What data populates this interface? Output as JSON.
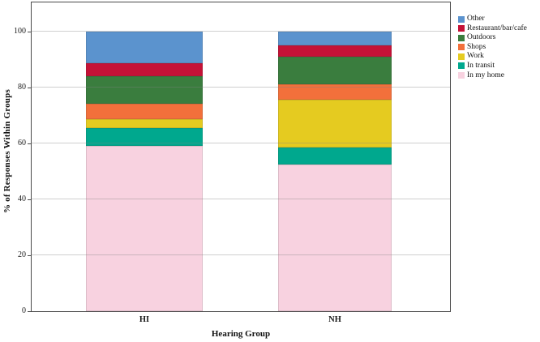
{
  "chart_data": {
    "type": "bar",
    "stacked": true,
    "title": "",
    "xlabel": "Hearing Group",
    "ylabel": "% of Responses Within Groups",
    "categories": [
      "HI",
      "NH"
    ],
    "series": [
      {
        "name": "In my home",
        "color": "#F8D2E0",
        "values": [
          59.0,
          52.5
        ]
      },
      {
        "name": "In transit",
        "color": "#00A88E",
        "values": [
          6.5,
          6.0
        ]
      },
      {
        "name": "Work",
        "color": "#E5CB20",
        "values": [
          3.0,
          17.0
        ]
      },
      {
        "name": "Shops",
        "color": "#F2703B",
        "values": [
          5.5,
          5.5
        ]
      },
      {
        "name": "Outdoors",
        "color": "#3A7D3E",
        "values": [
          10.0,
          10.0
        ]
      },
      {
        "name": "Restaurant/bar/cafe",
        "color": "#C51237",
        "values": [
          4.5,
          4.0
        ]
      },
      {
        "name": "Other",
        "color": "#5B93CE",
        "values": [
          11.5,
          5.0
        ]
      }
    ],
    "legend_order_top_to_bottom": [
      "Other",
      "Restaurant/bar/cafe",
      "Outdoors",
      "Shops",
      "Work",
      "In transit",
      "In my home"
    ],
    "legend_position": "top-right-outside",
    "yticks": [
      0,
      20,
      40,
      60,
      80,
      100
    ],
    "ylim": [
      0,
      110.3
    ],
    "grid": true,
    "frame_color": "#4a4a4a",
    "gridline_color": "#d9d9d9"
  }
}
